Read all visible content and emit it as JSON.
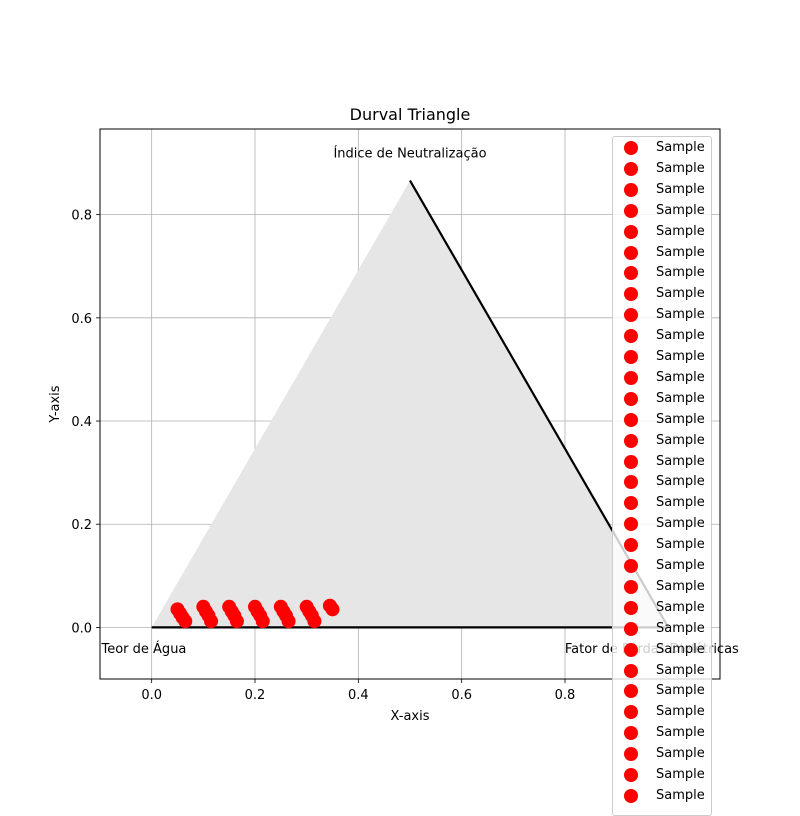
{
  "chart_data": {
    "type": "scatter",
    "title": "Durval Triangle",
    "xlabel": "X-axis",
    "ylabel": "Y-axis",
    "xlim": [
      -0.1,
      1.1
    ],
    "ylim": [
      -0.1,
      0.966
    ],
    "xticks": [
      "0.0",
      "0.2",
      "0.4",
      "0.6",
      "0.8"
    ],
    "yticks": [
      "0.0",
      "0.2",
      "0.4",
      "0.6",
      "0.8"
    ],
    "grid": true,
    "legend_position": "upper right",
    "triangle": {
      "vertices": [
        [
          0,
          0
        ],
        [
          1,
          0
        ],
        [
          0.5,
          0.866
        ]
      ],
      "fill_color": "#e6e6e6",
      "edge_color": "#000000"
    },
    "vertex_labels": [
      {
        "text": "Índice de Neutralização",
        "x": 0.5,
        "y": 0.92
      },
      {
        "text": "Teor de Água",
        "x": -0.01,
        "y": -0.04
      },
      {
        "text": "Fator de Perdas Dielétricas",
        "x": 1.03,
        "y": -0.04
      }
    ],
    "series": [
      {
        "name": "Sample",
        "color": "#ff0000",
        "points": [
          [
            0.05,
            0.035
          ],
          [
            0.055,
            0.027
          ],
          [
            0.06,
            0.019
          ],
          [
            0.065,
            0.012
          ],
          [
            0.1,
            0.04
          ],
          [
            0.105,
            0.031
          ],
          [
            0.11,
            0.023
          ],
          [
            0.115,
            0.012
          ],
          [
            0.15,
            0.04
          ],
          [
            0.155,
            0.031
          ],
          [
            0.16,
            0.023
          ],
          [
            0.165,
            0.012
          ],
          [
            0.2,
            0.04
          ],
          [
            0.205,
            0.031
          ],
          [
            0.21,
            0.023
          ],
          [
            0.215,
            0.012
          ],
          [
            0.25,
            0.04
          ],
          [
            0.255,
            0.031
          ],
          [
            0.26,
            0.023
          ],
          [
            0.265,
            0.012
          ],
          [
            0.3,
            0.04
          ],
          [
            0.305,
            0.031
          ],
          [
            0.31,
            0.023
          ],
          [
            0.315,
            0.012
          ],
          [
            0.345,
            0.042
          ],
          [
            0.35,
            0.035
          ]
        ]
      }
    ],
    "legend_entries": [
      "Sample",
      "Sample",
      "Sample",
      "Sample",
      "Sample",
      "Sample",
      "Sample",
      "Sample",
      "Sample",
      "Sample",
      "Sample",
      "Sample",
      "Sample",
      "Sample",
      "Sample",
      "Sample",
      "Sample",
      "Sample",
      "Sample",
      "Sample",
      "Sample",
      "Sample",
      "Sample",
      "Sample",
      "Sample",
      "Sample",
      "Sample",
      "Sample",
      "Sample",
      "Sample",
      "Sample",
      "Sample"
    ]
  }
}
